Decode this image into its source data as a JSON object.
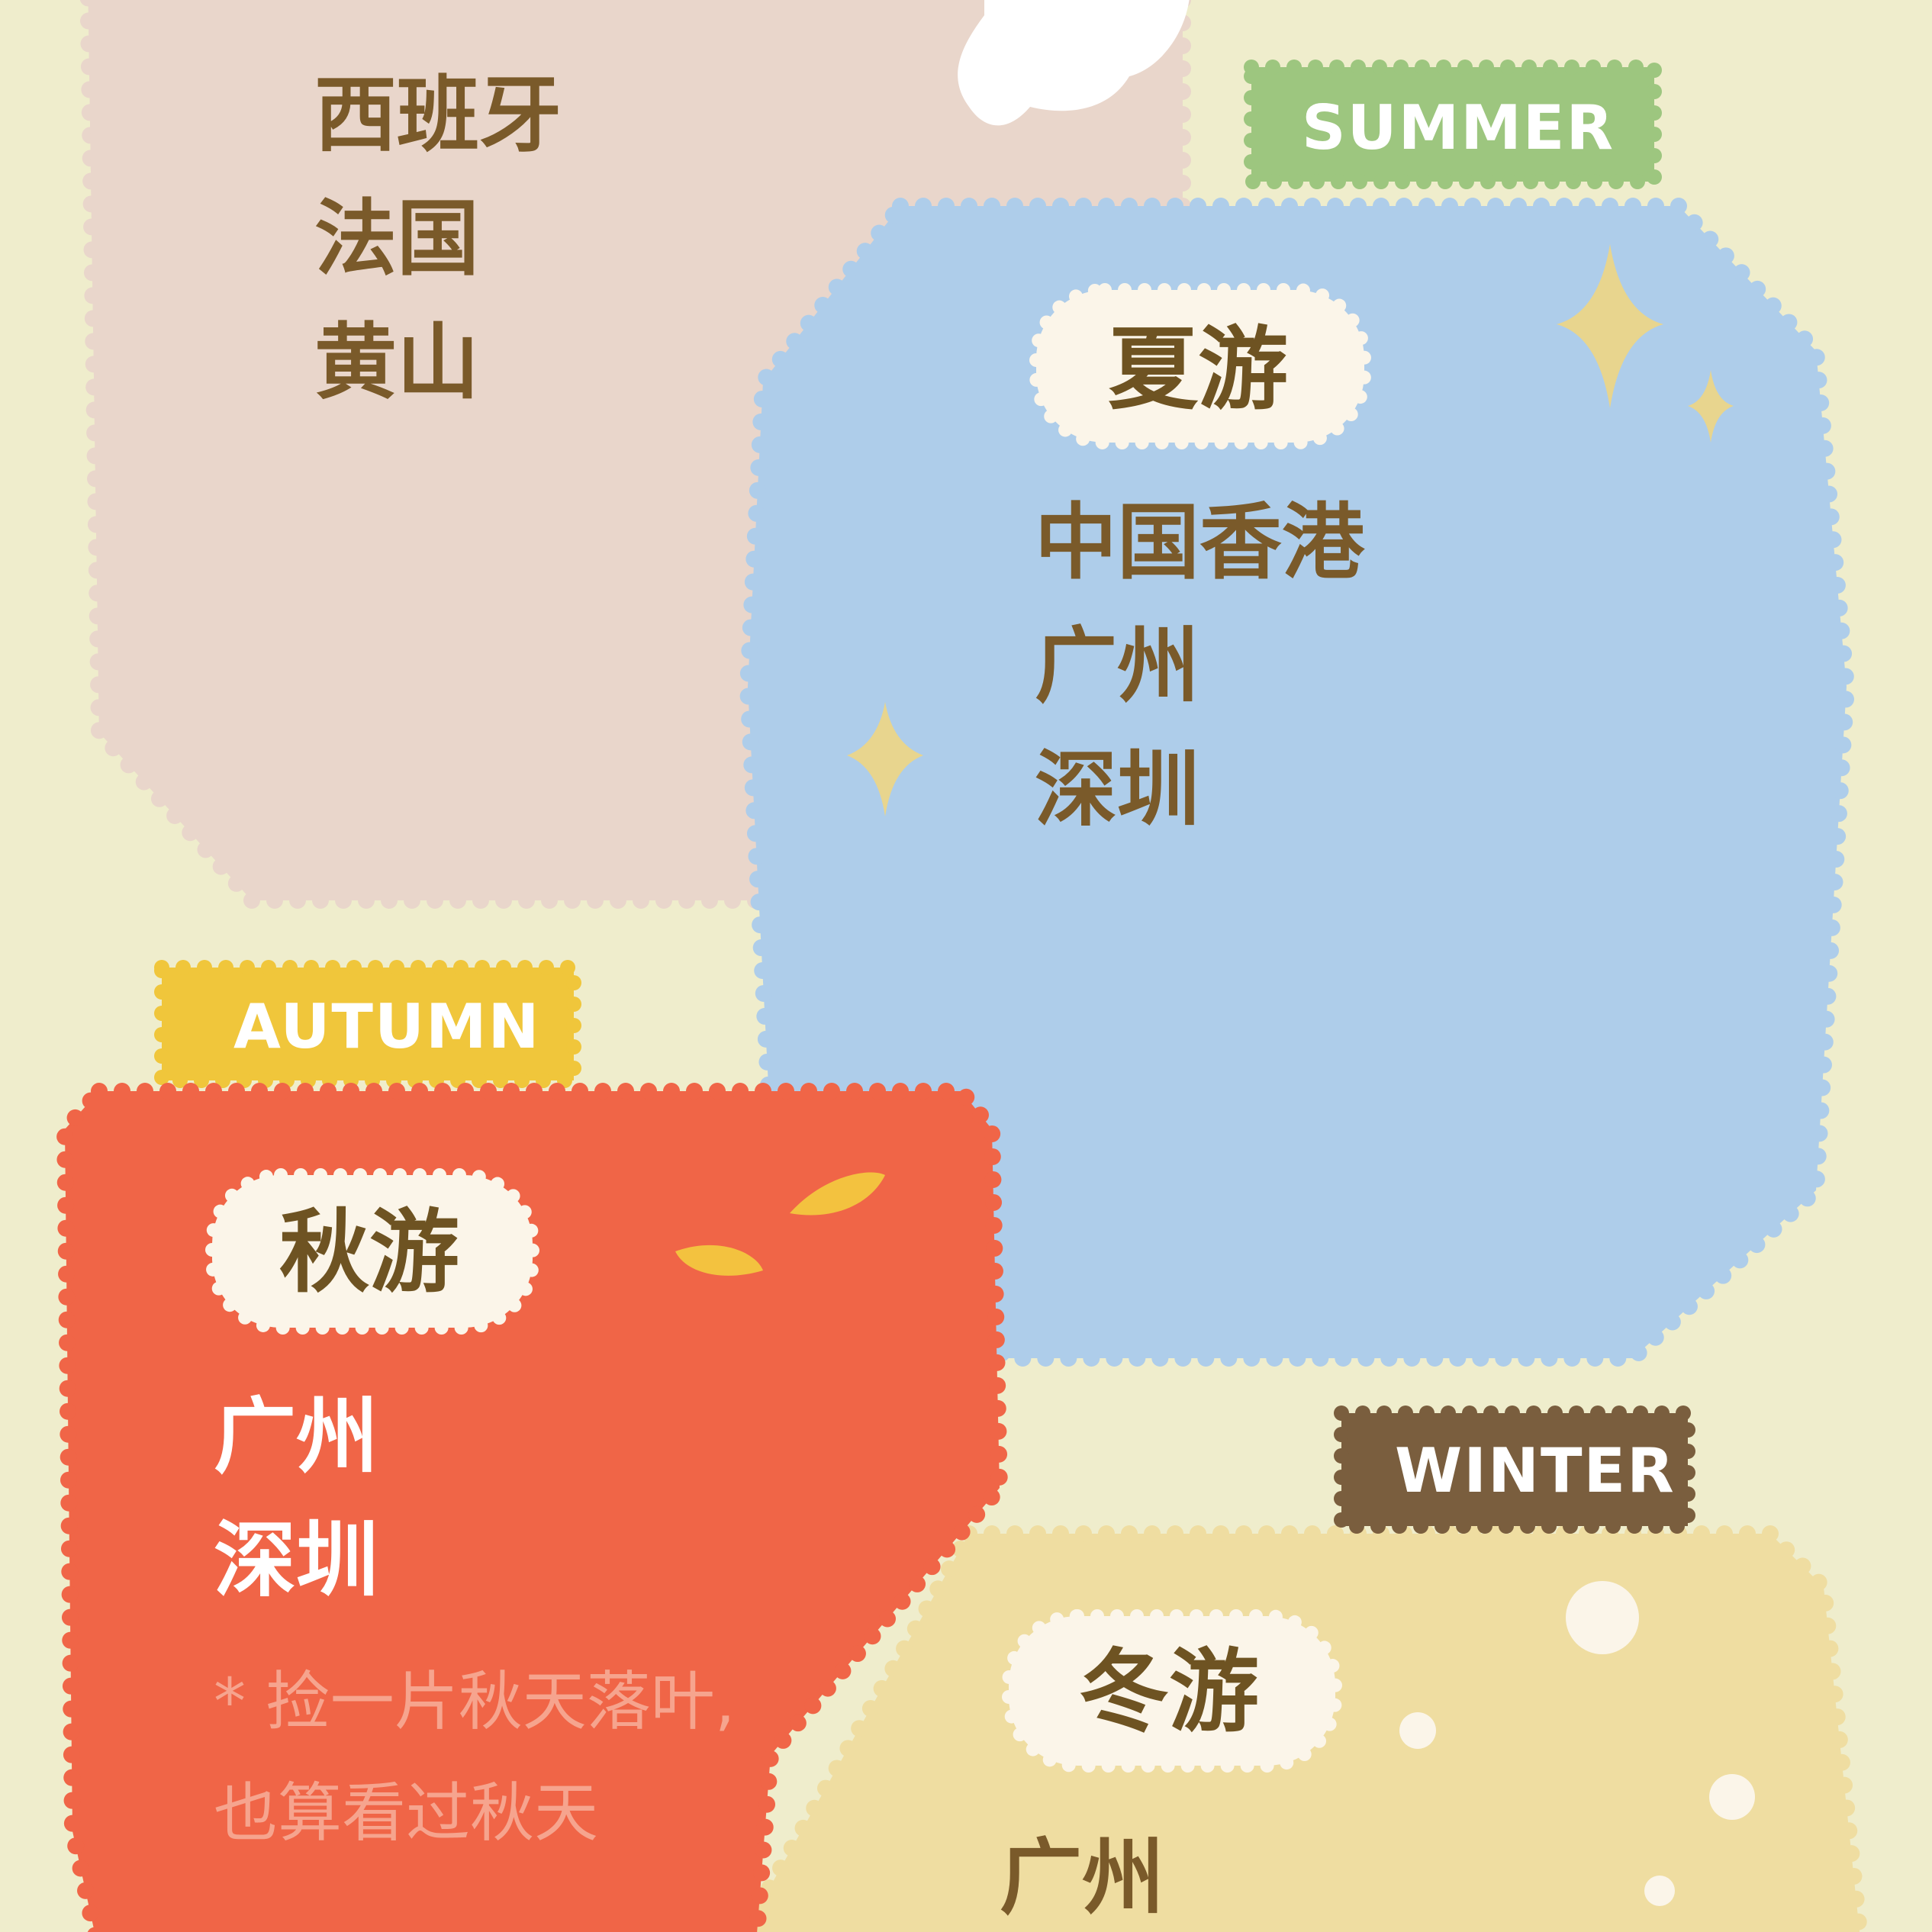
{
  "colors": {
    "background": "#EFEDCC",
    "spring_panel": "#E9D6CB",
    "summer_panel": "#AECDEA",
    "autumn_panel": "#F06547",
    "winter_panel": "#EFDDA1",
    "summer_tag": "#9DC67F",
    "autumn_tag": "#F0C63B",
    "winter_tag": "#7A5E3E",
    "brown_text": "#7A5A2A",
    "label_pill": "#FBF5E9",
    "sparkle": "#E8D58E"
  },
  "spring": {
    "places": [
      "西班牙",
      "法国",
      "黄山"
    ]
  },
  "summer": {
    "tag": "SUMMER",
    "title": "夏游",
    "places": [
      "中国香港",
      "广州",
      "深圳"
    ]
  },
  "autumn": {
    "tag": "AUTUMN",
    "title": "秋游",
    "places": [
      "广州",
      "深圳"
    ],
    "note_line1": "* 捡一片秋天落叶,",
    "note_line2": "也算看过秋天"
  },
  "winter": {
    "tag": "WINTER",
    "title": "冬游",
    "places": [
      "广州"
    ]
  }
}
